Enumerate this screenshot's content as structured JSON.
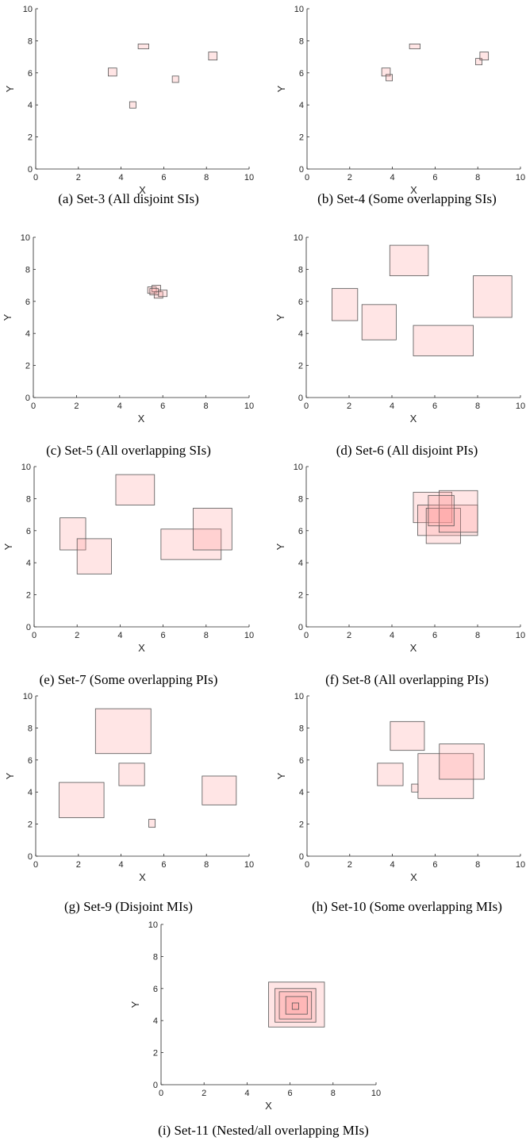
{
  "chart_data": [
    {
      "type": "rectangles",
      "caption": "(a) Set-3 (All disjoint SIs)",
      "xlabel": "X",
      "ylabel": "Y",
      "xlim": [
        0,
        10
      ],
      "ylim": [
        0,
        10
      ],
      "xticks": [
        0,
        2,
        4,
        6,
        8,
        10
      ],
      "yticks": [
        0,
        2,
        4,
        6,
        8,
        10
      ],
      "rects": [
        {
          "x": [
            3.4,
            3.8
          ],
          "y": [
            5.8,
            6.3
          ]
        },
        {
          "x": [
            4.8,
            5.3
          ],
          "y": [
            7.5,
            7.8
          ]
        },
        {
          "x": [
            4.4,
            4.7
          ],
          "y": [
            3.8,
            4.2
          ]
        },
        {
          "x": [
            6.4,
            6.7
          ],
          "y": [
            5.4,
            5.8
          ]
        },
        {
          "x": [
            8.1,
            8.5
          ],
          "y": [
            6.8,
            7.3
          ]
        }
      ]
    },
    {
      "type": "rectangles",
      "caption": "(b) Set-4 (Some overlapping SIs)",
      "xlabel": "X",
      "ylabel": "Y",
      "xlim": [
        0,
        10
      ],
      "ylim": [
        0,
        10
      ],
      "xticks": [
        0,
        2,
        4,
        6,
        8,
        10
      ],
      "yticks": [
        0,
        2,
        4,
        6,
        8,
        10
      ],
      "rects": [
        {
          "x": [
            3.5,
            3.9
          ],
          "y": [
            5.8,
            6.3
          ]
        },
        {
          "x": [
            3.7,
            4.0
          ],
          "y": [
            5.5,
            5.9
          ]
        },
        {
          "x": [
            4.8,
            5.3
          ],
          "y": [
            7.5,
            7.8
          ]
        },
        {
          "x": [
            7.9,
            8.2
          ],
          "y": [
            6.5,
            6.9
          ]
        },
        {
          "x": [
            8.1,
            8.5
          ],
          "y": [
            6.8,
            7.3
          ]
        }
      ]
    },
    {
      "type": "rectangles",
      "caption": "(c) Set-5 (All overlapping SIs)",
      "xlabel": "X",
      "ylabel": "Y",
      "xlim": [
        0,
        10
      ],
      "ylim": [
        0,
        10
      ],
      "xticks": [
        0,
        2,
        4,
        6,
        8,
        10
      ],
      "yticks": [
        0,
        2,
        4,
        6,
        8,
        10
      ],
      "rects": [
        {
          "x": [
            5.3,
            5.7
          ],
          "y": [
            6.5,
            6.9
          ]
        },
        {
          "x": [
            5.5,
            5.9
          ],
          "y": [
            6.6,
            7.0
          ]
        },
        {
          "x": [
            5.6,
            6.0
          ],
          "y": [
            6.2,
            6.6
          ]
        },
        {
          "x": [
            5.8,
            6.2
          ],
          "y": [
            6.3,
            6.7
          ]
        },
        {
          "x": [
            5.4,
            5.8
          ],
          "y": [
            6.4,
            6.8
          ]
        }
      ]
    },
    {
      "type": "rectangles",
      "caption": "(d) Set-6 (All disjoint PIs)",
      "xlabel": "X",
      "ylabel": "Y",
      "xlim": [
        0,
        10
      ],
      "ylim": [
        0,
        10
      ],
      "xticks": [
        0,
        2,
        4,
        6,
        8,
        10
      ],
      "yticks": [
        0,
        2,
        4,
        6,
        8,
        10
      ],
      "rects": [
        {
          "x": [
            1.2,
            2.4
          ],
          "y": [
            4.8,
            6.8
          ]
        },
        {
          "x": [
            2.6,
            4.2
          ],
          "y": [
            3.6,
            5.8
          ]
        },
        {
          "x": [
            3.9,
            5.7
          ],
          "y": [
            7.6,
            9.5
          ]
        },
        {
          "x": [
            5.0,
            7.8
          ],
          "y": [
            2.6,
            4.5
          ]
        },
        {
          "x": [
            7.8,
            9.6
          ],
          "y": [
            5.0,
            7.6
          ]
        }
      ]
    },
    {
      "type": "rectangles",
      "caption": "(e) Set-7 (Some overlapping PIs)",
      "xlabel": "X",
      "ylabel": "Y",
      "xlim": [
        0,
        10
      ],
      "ylim": [
        0,
        10
      ],
      "xticks": [
        0,
        2,
        4,
        6,
        8,
        10
      ],
      "yticks": [
        0,
        2,
        4,
        6,
        8,
        10
      ],
      "rects": [
        {
          "x": [
            1.2,
            2.4
          ],
          "y": [
            4.8,
            6.8
          ]
        },
        {
          "x": [
            2.0,
            3.6
          ],
          "y": [
            3.3,
            5.5
          ]
        },
        {
          "x": [
            3.8,
            5.6
          ],
          "y": [
            7.6,
            9.5
          ]
        },
        {
          "x": [
            5.9,
            8.7
          ],
          "y": [
            4.2,
            6.1
          ]
        },
        {
          "x": [
            7.4,
            9.2
          ],
          "y": [
            4.8,
            7.4
          ]
        }
      ]
    },
    {
      "type": "rectangles",
      "caption": "(f) Set-8 (All overlapping PIs)",
      "xlabel": "X",
      "ylabel": "Y",
      "xlim": [
        0,
        10
      ],
      "ylim": [
        0,
        10
      ],
      "xticks": [
        0,
        2,
        4,
        6,
        8,
        10
      ],
      "yticks": [
        0,
        2,
        4,
        6,
        8,
        10
      ],
      "rects": [
        {
          "x": [
            5.0,
            6.8
          ],
          "y": [
            6.5,
            8.4
          ]
        },
        {
          "x": [
            5.2,
            8.0
          ],
          "y": [
            5.7,
            7.6
          ]
        },
        {
          "x": [
            5.6,
            7.2
          ],
          "y": [
            5.2,
            7.4
          ]
        },
        {
          "x": [
            6.2,
            8.0
          ],
          "y": [
            5.9,
            8.5
          ]
        },
        {
          "x": [
            5.7,
            6.9
          ],
          "y": [
            6.3,
            8.2
          ]
        }
      ]
    },
    {
      "type": "rectangles",
      "caption": "(g) Set-9 (Disjoint MIs)",
      "xlabel": "X",
      "ylabel": "Y",
      "xlim": [
        0,
        10
      ],
      "ylim": [
        0,
        10
      ],
      "xticks": [
        0,
        2,
        4,
        6,
        8,
        10
      ],
      "yticks": [
        0,
        2,
        4,
        6,
        8,
        10
      ],
      "rects": [
        {
          "x": [
            1.1,
            3.2
          ],
          "y": [
            2.4,
            4.6
          ]
        },
        {
          "x": [
            2.8,
            5.4
          ],
          "y": [
            6.4,
            9.2
          ]
        },
        {
          "x": [
            3.9,
            5.1
          ],
          "y": [
            4.4,
            5.8
          ]
        },
        {
          "x": [
            5.3,
            5.6
          ],
          "y": [
            1.8,
            2.3
          ]
        },
        {
          "x": [
            7.8,
            9.4
          ],
          "y": [
            3.2,
            5.0
          ]
        }
      ]
    },
    {
      "type": "rectangles",
      "caption": "(h) Set-10 (Some overlapping MIs)",
      "xlabel": "X",
      "ylabel": "Y",
      "xlim": [
        0,
        10
      ],
      "ylim": [
        0,
        10
      ],
      "xticks": [
        0,
        2,
        4,
        6,
        8,
        10
      ],
      "yticks": [
        0,
        2,
        4,
        6,
        8,
        10
      ],
      "rects": [
        {
          "x": [
            3.3,
            4.5
          ],
          "y": [
            4.4,
            5.8
          ]
        },
        {
          "x": [
            3.9,
            5.5
          ],
          "y": [
            6.6,
            8.4
          ]
        },
        {
          "x": [
            4.9,
            5.2
          ],
          "y": [
            4.0,
            4.5
          ]
        },
        {
          "x": [
            5.2,
            7.8
          ],
          "y": [
            3.6,
            6.4
          ]
        },
        {
          "x": [
            6.2,
            8.3
          ],
          "y": [
            4.8,
            7.0
          ]
        }
      ]
    },
    {
      "type": "rectangles",
      "caption": "(i) Set-11 (Nested/all overlapping MIs)",
      "xlabel": "X",
      "ylabel": "Y",
      "xlim": [
        0,
        10
      ],
      "ylim": [
        0,
        10
      ],
      "xticks": [
        0,
        2,
        4,
        6,
        8,
        10
      ],
      "yticks": [
        0,
        2,
        4,
        6,
        8,
        10
      ],
      "rects": [
        {
          "x": [
            5.0,
            7.6
          ],
          "y": [
            3.6,
            6.4
          ]
        },
        {
          "x": [
            5.3,
            7.2
          ],
          "y": [
            3.9,
            6.0
          ]
        },
        {
          "x": [
            5.5,
            7.0
          ],
          "y": [
            4.1,
            5.8
          ]
        },
        {
          "x": [
            5.8,
            6.8
          ],
          "y": [
            4.4,
            5.5
          ]
        },
        {
          "x": [
            6.1,
            6.4
          ],
          "y": [
            4.7,
            5.1
          ]
        }
      ]
    }
  ]
}
